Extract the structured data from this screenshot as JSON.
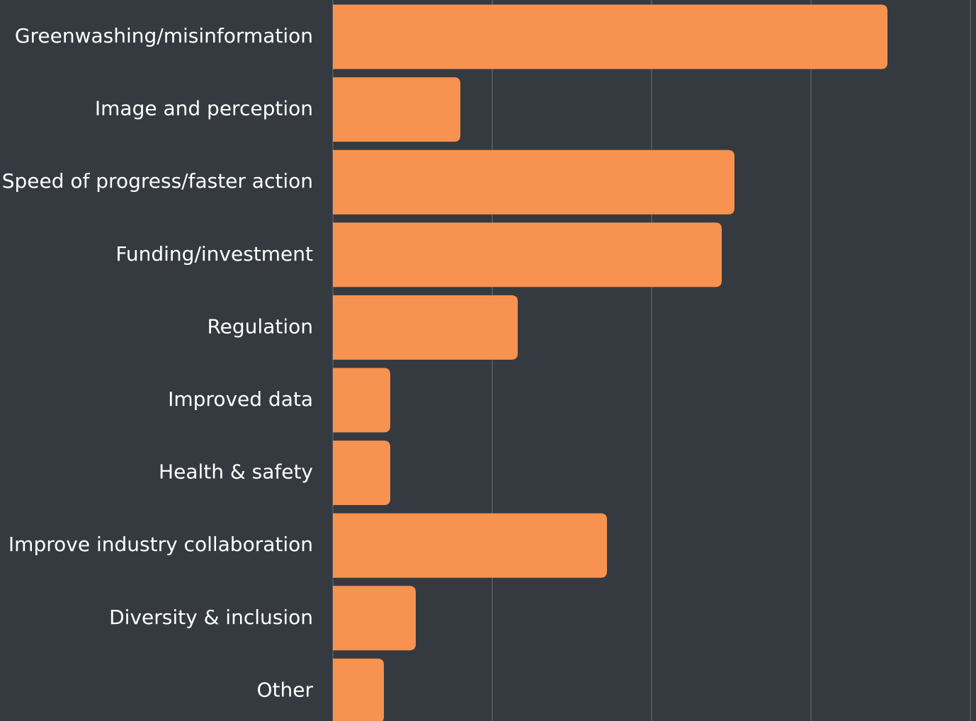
{
  "chart_data": {
    "type": "bar",
    "orientation": "horizontal",
    "categories": [
      "Greenwashing/misinformation",
      "Image and perception",
      "Speed of progress/faster action",
      "Funding/investment",
      "Regulation",
      "Improved data",
      "Health & safety",
      "Improve industry collaboration",
      "Diversity & inclusion",
      "Other"
    ],
    "values": [
      87,
      20,
      63,
      61,
      29,
      9,
      9,
      43,
      13,
      8
    ],
    "color": "#f79250",
    "xlim": [
      0,
      100
    ],
    "xticks": [
      0,
      25,
      50,
      75,
      100
    ],
    "grid": true
  }
}
